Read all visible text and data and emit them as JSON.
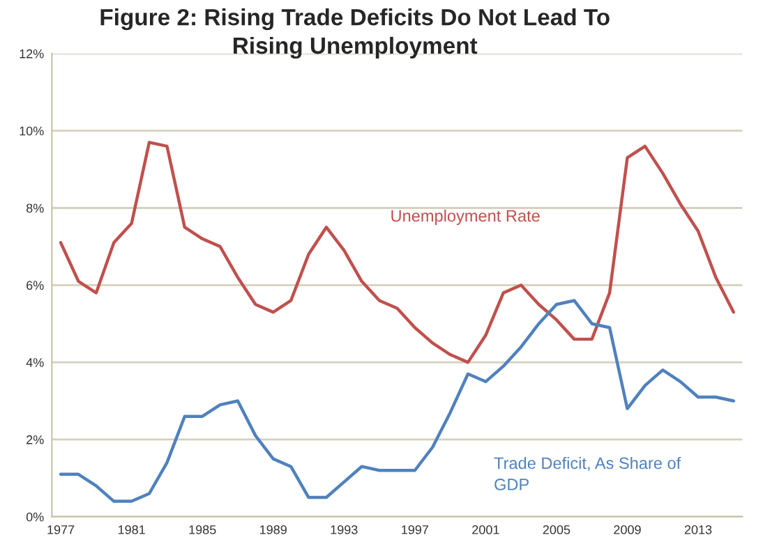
{
  "chart_data": {
    "type": "line",
    "title": "Figure 2: Rising Trade Deficits Do Not Lead To\nRising Unemployment",
    "x": [
      1977,
      1978,
      1979,
      1980,
      1981,
      1982,
      1983,
      1984,
      1985,
      1986,
      1987,
      1988,
      1989,
      1990,
      1991,
      1992,
      1993,
      1994,
      1995,
      1996,
      1997,
      1998,
      1999,
      2000,
      2001,
      2002,
      2003,
      2004,
      2005,
      2006,
      2007,
      2008,
      2009,
      2010,
      2011,
      2012,
      2013,
      2014,
      2015
    ],
    "series": [
      {
        "name": "Unemployment Rate",
        "color": "#c0504d",
        "values": [
          7.1,
          6.1,
          5.8,
          7.1,
          7.6,
          9.7,
          9.6,
          7.5,
          7.2,
          7.0,
          6.2,
          5.5,
          5.3,
          5.6,
          6.8,
          7.5,
          6.9,
          6.1,
          5.6,
          5.4,
          4.9,
          4.5,
          4.2,
          4.0,
          4.7,
          5.8,
          6.0,
          5.5,
          5.1,
          4.6,
          4.6,
          5.8,
          9.3,
          9.6,
          8.9,
          8.1,
          7.4,
          6.2,
          5.3
        ]
      },
      {
        "name": "Trade Deficit, As Share of\nGDP",
        "color": "#4f81bd",
        "values": [
          1.1,
          1.1,
          0.8,
          0.4,
          0.4,
          0.6,
          1.4,
          2.6,
          2.6,
          2.9,
          3.0,
          2.1,
          1.5,
          1.3,
          0.5,
          0.5,
          0.9,
          1.3,
          1.2,
          1.2,
          1.2,
          1.8,
          2.7,
          3.7,
          3.5,
          3.9,
          4.4,
          5.0,
          5.5,
          5.6,
          5.0,
          4.9,
          2.8,
          3.4,
          3.8,
          3.5,
          3.1,
          3.1,
          3.0
        ]
      }
    ],
    "xlim": [
      1976.5,
      2015.5
    ],
    "xticks": [
      1977,
      1981,
      1985,
      1989,
      1993,
      1997,
      2001,
      2005,
      2009,
      2013
    ],
    "ylim": [
      0,
      12
    ],
    "yticks": [
      {
        "value": 0,
        "label": "0%"
      },
      {
        "value": 2,
        "label": "2%"
      },
      {
        "value": 4,
        "label": "4%"
      },
      {
        "value": 6,
        "label": "6%"
      },
      {
        "value": 8,
        "label": "8%"
      },
      {
        "value": 10,
        "label": "10%"
      },
      {
        "value": 12,
        "label": "12%"
      }
    ],
    "grid": "y",
    "legend": false,
    "marker": "none",
    "line_style": "solid"
  }
}
